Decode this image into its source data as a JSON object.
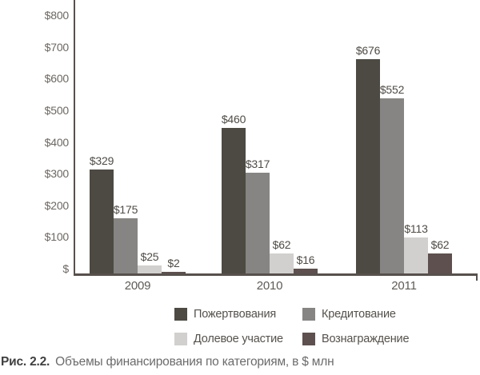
{
  "figure": {
    "caption_label": "Рис. 2.2.",
    "caption_text": "Объемы финансирования по категориям, в $ млн"
  },
  "chart_data": {
    "type": "bar",
    "title": "Объемы финансирования по категориям, в $ млн",
    "categories": [
      "2009",
      "2010",
      "2011"
    ],
    "series": [
      {
        "name": "Пожертвования",
        "color": "#4d4a43",
        "values": [
          329,
          460,
          676
        ]
      },
      {
        "name": "Кредитование",
        "color": "#868583",
        "values": [
          175,
          317,
          552
        ]
      },
      {
        "name": "Долевое участие",
        "color": "#d1d0ce",
        "values": [
          25,
          62,
          113
        ]
      },
      {
        "name": "Вознаграждение",
        "color": "#5d504e",
        "values": [
          2,
          16,
          62
        ]
      }
    ],
    "value_prefix": "$",
    "value_labels": [
      [
        "$329",
        "$460",
        "$676"
      ],
      [
        "$175",
        "$317",
        "$552"
      ],
      [
        "$25",
        "$62",
        "$113"
      ],
      [
        "$2",
        "$16",
        "$62"
      ]
    ],
    "ylim": [
      0,
      800
    ],
    "y_ticks": [
      {
        "value": 0,
        "label": "$"
      },
      {
        "value": 100,
        "label": "$100"
      },
      {
        "value": 200,
        "label": "$200"
      },
      {
        "value": 300,
        "label": "$300"
      },
      {
        "value": 400,
        "label": "$400"
      },
      {
        "value": 500,
        "label": "$500"
      },
      {
        "value": 600,
        "label": "$600"
      },
      {
        "value": 700,
        "label": "$700"
      },
      {
        "value": 800,
        "label": "$800"
      }
    ],
    "xlabel": "",
    "ylabel": "",
    "grid": false,
    "legend_position": "bottom",
    "colors": {
      "axis": "#57504c",
      "tick_text": "#6c6762",
      "value_text": "#4f4b46",
      "category_text": "#5f5b56",
      "legend_text": "#55514c",
      "caption_label_text": "#404040",
      "caption_text": "#6b6b6b"
    }
  }
}
